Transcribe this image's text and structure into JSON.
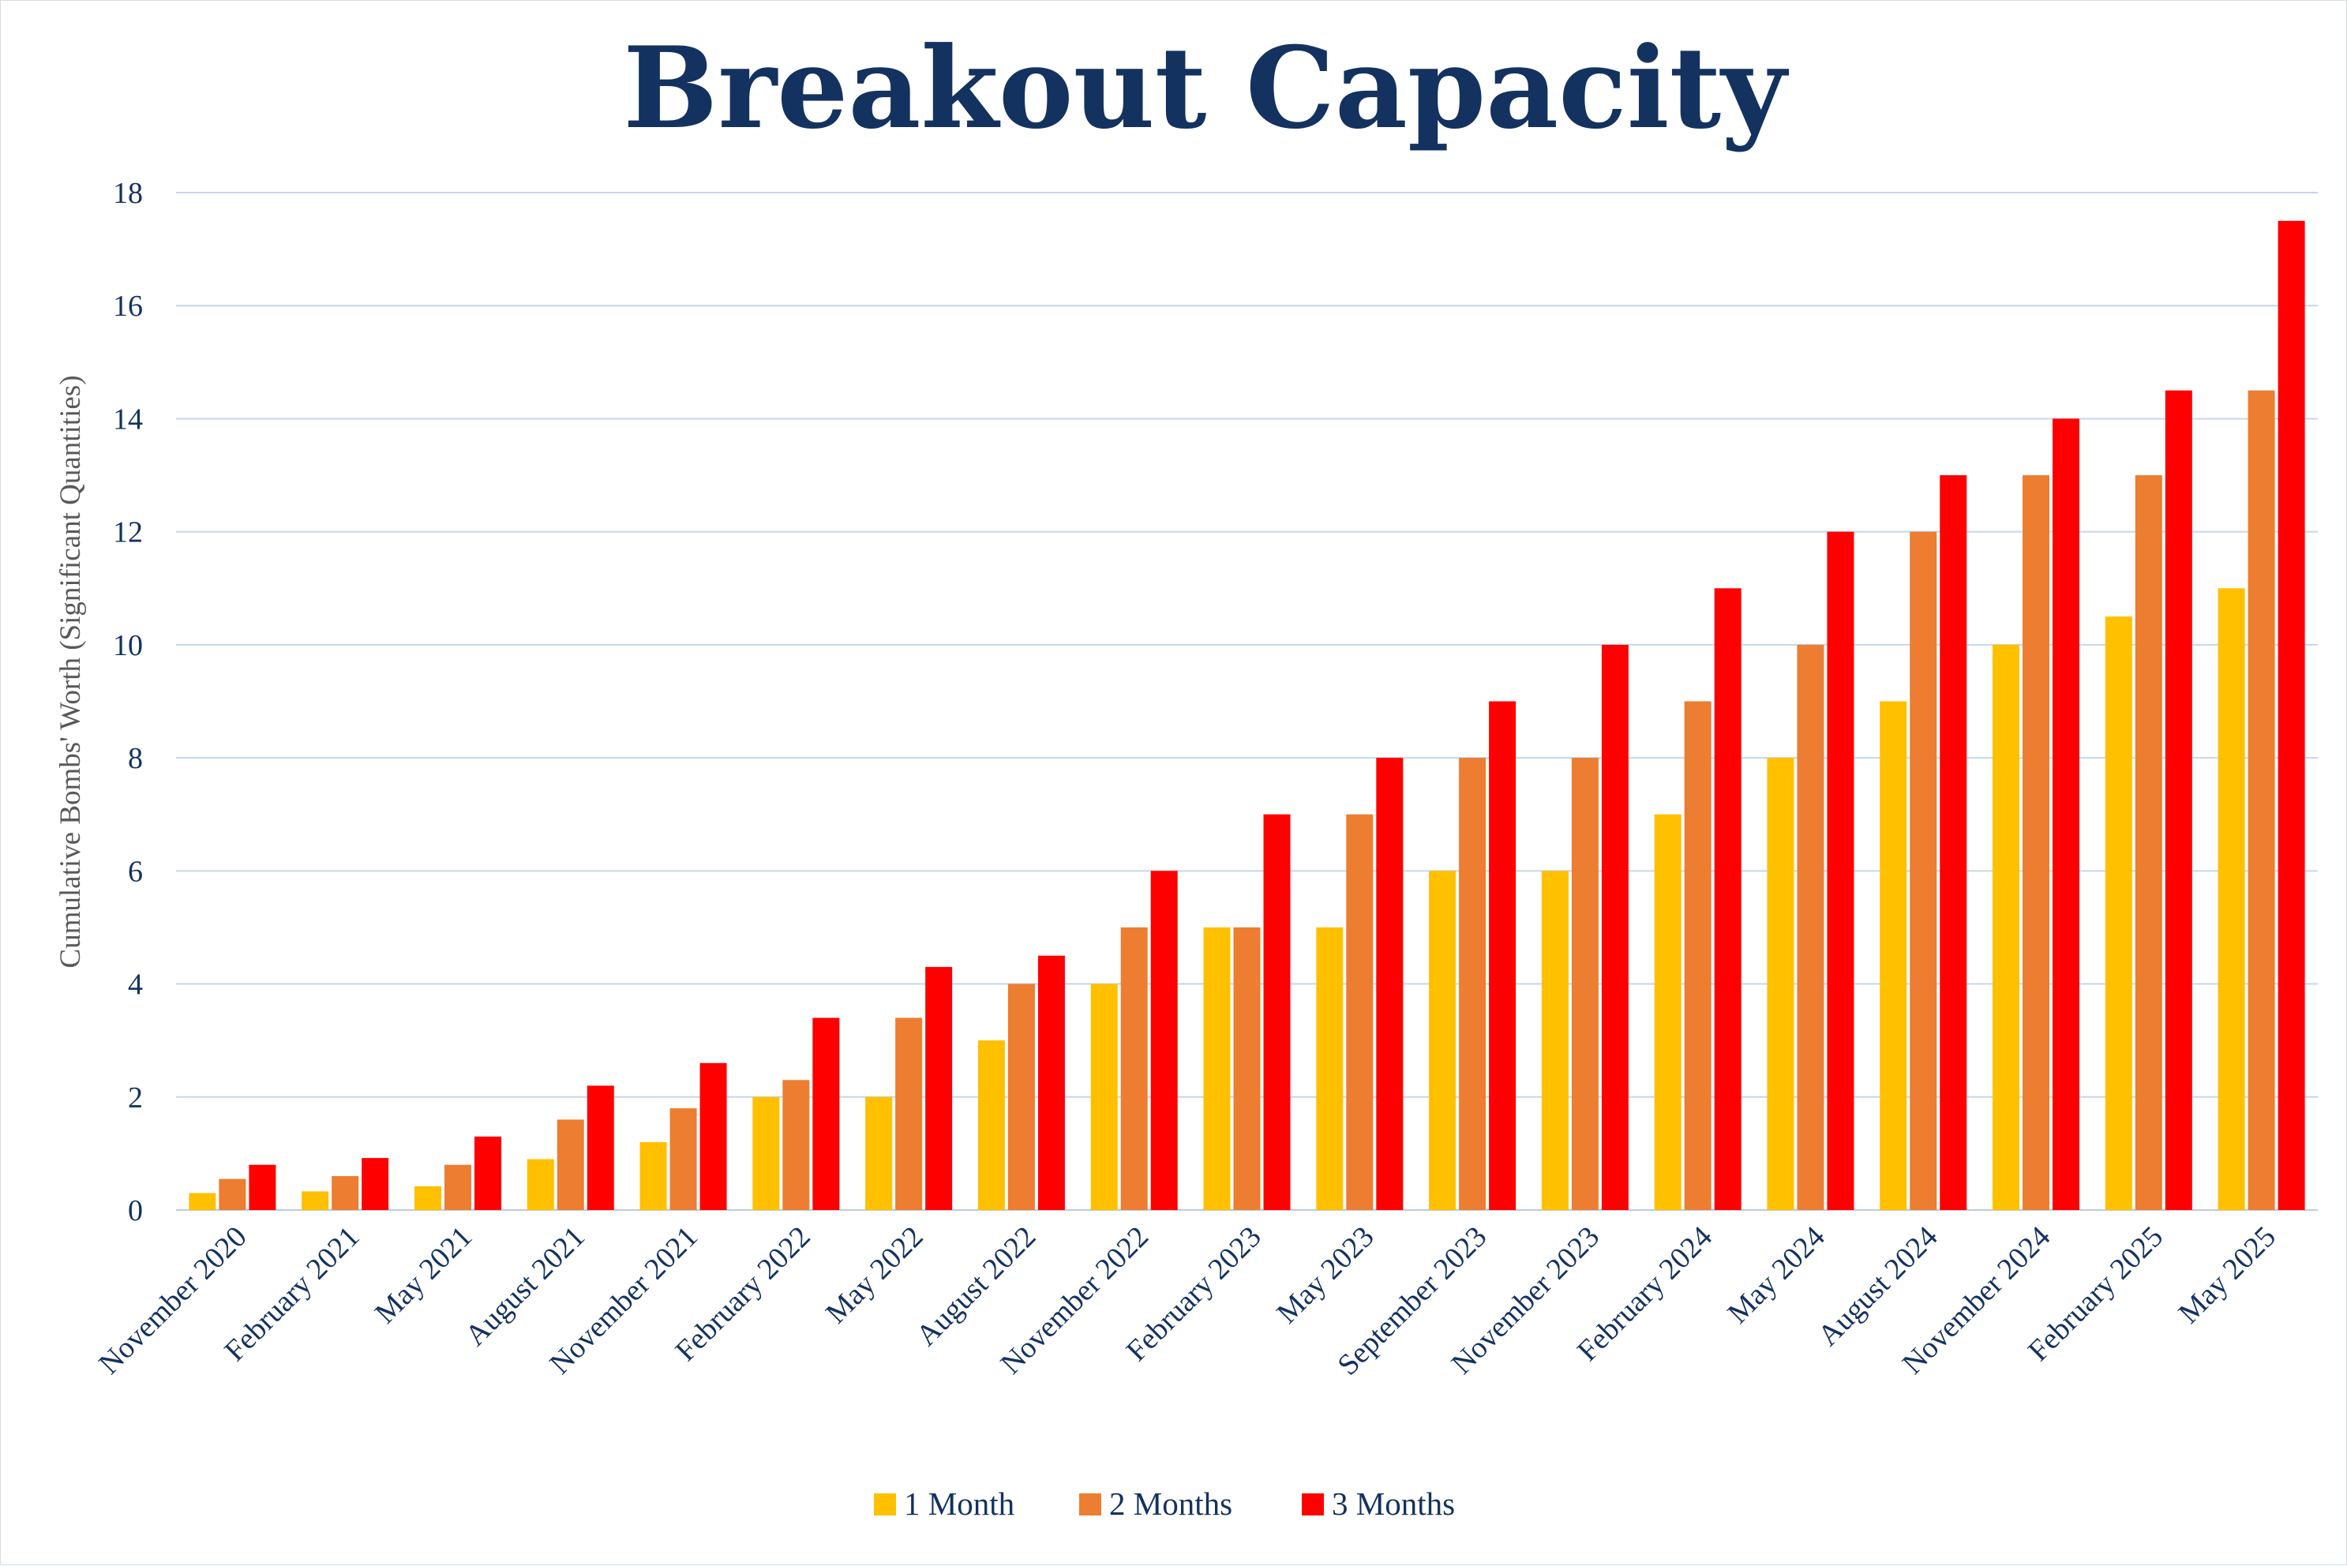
{
  "chart_data": {
    "type": "bar",
    "title": "Breakout Capacity",
    "ylabel": "Cumulative Bombs' Worth (Significant Quantities)",
    "xlabel": "",
    "ylim": [
      0,
      18
    ],
    "yticks": [
      "0",
      "2",
      "4",
      "6",
      "8",
      "10",
      "12",
      "14",
      "16",
      "18"
    ],
    "grid": true,
    "legend_position": "bottom",
    "categories": [
      "November 2020",
      "February 2021",
      "May 2021",
      "August 2021",
      "November 2021",
      "February 2022",
      "May 2022",
      "August 2022",
      "November 2022",
      "February 2023",
      "May 2023",
      "September 2023",
      "November 2023",
      "February 2024",
      "May 2024",
      "August 2024",
      "November 2024",
      "February 2025",
      "May 2025"
    ],
    "series": [
      {
        "name": "1 Month",
        "color": "#ffc000",
        "values": [
          0.3,
          0.33,
          0.42,
          0.9,
          1.2,
          2.0,
          2.0,
          3.0,
          4.0,
          5.0,
          5.0,
          6.0,
          6.0,
          7.0,
          8.0,
          9.0,
          10.0,
          10.5,
          11.0
        ]
      },
      {
        "name": "2 Months",
        "color": "#ed7d31",
        "values": [
          0.55,
          0.6,
          0.8,
          1.6,
          1.8,
          2.3,
          3.4,
          4.0,
          5.0,
          5.0,
          7.0,
          8.0,
          8.0,
          9.0,
          10.0,
          12.0,
          13.0,
          13.0,
          14.5
        ]
      },
      {
        "name": "3 Months",
        "color": "#ff0000",
        "values": [
          0.8,
          0.92,
          1.3,
          2.2,
          2.6,
          3.4,
          4.3,
          4.5,
          6.0,
          7.0,
          8.0,
          9.0,
          10.0,
          11.0,
          12.0,
          13.0,
          14.0,
          14.5,
          17.5
        ]
      }
    ]
  },
  "colors": {
    "title": "#14325f",
    "axis_text": "#14325f",
    "ylabel_text": "#595959",
    "gridline": "#c5d6ec",
    "axis_line": "#bfcbdc"
  }
}
